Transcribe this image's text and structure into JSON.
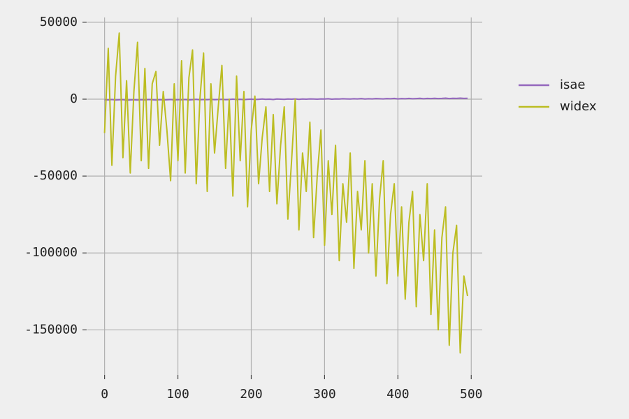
{
  "chart_data": {
    "type": "line",
    "x": [
      0,
      5,
      10,
      15,
      20,
      25,
      30,
      35,
      40,
      45,
      50,
      55,
      60,
      65,
      70,
      75,
      80,
      85,
      90,
      95,
      100,
      105,
      110,
      115,
      120,
      125,
      130,
      135,
      140,
      145,
      150,
      155,
      160,
      165,
      170,
      175,
      180,
      185,
      190,
      195,
      200,
      205,
      210,
      215,
      220,
      225,
      230,
      235,
      240,
      245,
      250,
      255,
      260,
      265,
      270,
      275,
      280,
      285,
      290,
      295,
      300,
      305,
      310,
      315,
      320,
      325,
      330,
      335,
      340,
      345,
      350,
      355,
      360,
      365,
      370,
      375,
      380,
      385,
      390,
      395,
      400,
      405,
      410,
      415,
      420,
      425,
      430,
      435,
      440,
      445,
      450,
      455,
      460,
      465,
      470,
      475,
      480,
      485,
      490,
      495
    ],
    "series": [
      {
        "name": "isae",
        "color": "#9467bd",
        "values": [
          -300,
          -500,
          -200,
          -600,
          -400,
          -300,
          -700,
          -500,
          -400,
          -600,
          -300,
          -500,
          -200,
          -400,
          -600,
          -300,
          -500,
          -400,
          -200,
          -500,
          -300,
          -400,
          -200,
          -500,
          -300,
          -100,
          -400,
          -200,
          -300,
          -100,
          -300,
          -200,
          -100,
          -300,
          -200,
          0,
          -200,
          -100,
          -300,
          -100,
          0,
          -200,
          -100,
          100,
          -100,
          0,
          -200,
          100,
          0,
          -100,
          100,
          0,
          200,
          -100,
          100,
          0,
          200,
          100,
          0,
          200,
          100,
          300,
          0,
          200,
          100,
          300,
          200,
          100,
          300,
          200,
          400,
          100,
          300,
          200,
          400,
          300,
          200,
          400,
          300,
          500,
          200,
          400,
          300,
          500,
          300,
          400,
          600,
          300,
          500,
          400,
          600,
          400,
          500,
          700,
          400,
          600,
          500,
          700,
          500,
          600
        ]
      },
      {
        "name": "widex",
        "color": "#bcbd22",
        "values": [
          -22000,
          33000,
          -43000,
          15000,
          43000,
          -38000,
          12000,
          -48000,
          5000,
          37000,
          -40000,
          20000,
          -45000,
          10000,
          18000,
          -30000,
          5000,
          -20000,
          -53000,
          10000,
          -40000,
          25000,
          -48000,
          14000,
          32000,
          -55000,
          0,
          30000,
          -60000,
          10000,
          -35000,
          -5000,
          22000,
          -45000,
          0,
          -63000,
          15000,
          -40000,
          5000,
          -70000,
          -20000,
          2000,
          -55000,
          -25000,
          -5000,
          -60000,
          -10000,
          -68000,
          -30000,
          -5000,
          -78000,
          -40000,
          0,
          -85000,
          -35000,
          -60000,
          -15000,
          -90000,
          -50000,
          -20000,
          -95000,
          -40000,
          -75000,
          -30000,
          -105000,
          -55000,
          -80000,
          -35000,
          -110000,
          -60000,
          -85000,
          -40000,
          -100000,
          -55000,
          -115000,
          -65000,
          -40000,
          -120000,
          -75000,
          -55000,
          -115000,
          -70000,
          -130000,
          -80000,
          -60000,
          -135000,
          -75000,
          -105000,
          -55000,
          -140000,
          -85000,
          -150000,
          -90000,
          -70000,
          -160000,
          -100000,
          -82000,
          -165000,
          -115000,
          -128000
        ]
      }
    ],
    "xlim": [
      -33,
      515
    ],
    "ylim": [
      -183000,
      54500
    ],
    "xticks": [
      0,
      100,
      200,
      300,
      400,
      500
    ],
    "yticks": [
      50000,
      0,
      -50000,
      -100000,
      -150000
    ],
    "grid": true,
    "legend": "right"
  }
}
